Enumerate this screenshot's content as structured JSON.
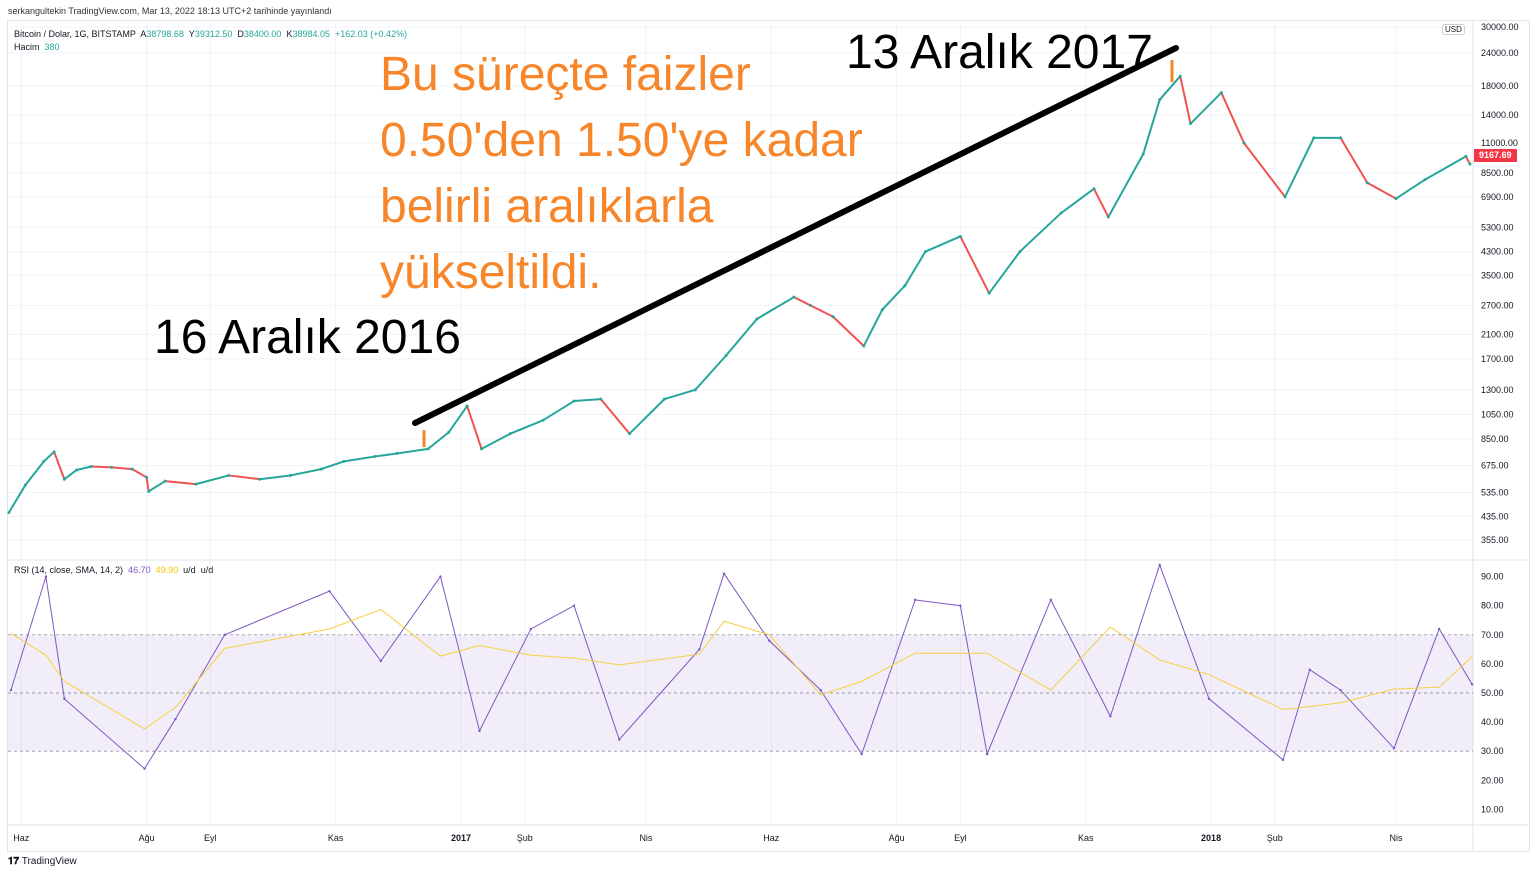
{
  "published": "serkangultekin TradingView.com, Mar 13, 2022 18:13 UTC+2 tarihinde yayınlandı",
  "legend": {
    "symbol": "Bitcoin / Dolar, 1G, BITSTAMP",
    "o_label": "A",
    "o": "38798.68",
    "h_label": "Y",
    "h": "39312.50",
    "l_label": "D",
    "l": "38400.00",
    "c_label": "K",
    "c": "38984.05",
    "change": "+162.03 (+0.42%)",
    "volume_label": "Hacim",
    "volume": "380"
  },
  "rsi_legend": {
    "label": "RSI (14, close, SMA, 14, 2)",
    "rsi": "46.70",
    "sma": "49.90",
    "ud1": "u/d",
    "ud2": "u/d"
  },
  "currency": "USD",
  "last_price": "9167.69",
  "annotations": {
    "orange_lines": [
      "Bu süreçte faizler",
      "0.50'den 1.50'ye kadar",
      "belirli aralıklarla",
      "yükseltildi."
    ],
    "start_label": "16 Aralık 2016",
    "end_label": "13 Aralık 2017"
  },
  "footer": "TradingView",
  "colors": {
    "up": "#26a69a",
    "down": "#ef5350",
    "rsi": "#7e57c2",
    "rsi_sma": "#f5d142",
    "annotation": "#f7862a",
    "trendline": "#000000"
  },
  "chart_data": [
    {
      "type": "line",
      "scale": "log",
      "title": "Bitcoin / Dolar, 1G, BITSTAMP",
      "ylim": [
        340,
        30000
      ],
      "y_ticks": [
        "30000.00",
        "24000.00",
        "18000.00",
        "14000.00",
        "11000.00",
        "8500.00",
        "6900.00",
        "5300.00",
        "4300.00",
        "3500.00",
        "2700.00",
        "2100.00",
        "1700.00",
        "1300.00",
        "1050.00",
        "850.00",
        "675.00",
        "535.00",
        "435.00",
        "355.00"
      ],
      "x_ticks": [
        {
          "label": "Haz",
          "date": "2016-06-01"
        },
        {
          "label": "Ağu",
          "date": "2016-08-01"
        },
        {
          "label": "Eyl",
          "date": "2016-09-01"
        },
        {
          "label": "Kas",
          "date": "2016-11-01"
        },
        {
          "label": "2017",
          "date": "2017-01-01"
        },
        {
          "label": "Şub",
          "date": "2017-02-01"
        },
        {
          "label": "Nis",
          "date": "2017-04-01"
        },
        {
          "label": "Haz",
          "date": "2017-06-01"
        },
        {
          "label": "Ağu",
          "date": "2017-08-01"
        },
        {
          "label": "Eyl",
          "date": "2017-09-01"
        },
        {
          "label": "Kas",
          "date": "2017-11-01"
        },
        {
          "label": "2018",
          "date": "2018-01-01"
        },
        {
          "label": "Şub",
          "date": "2018-02-01"
        },
        {
          "label": "Nis",
          "date": "2018-04-01"
        }
      ],
      "points": [
        [
          "2016-05-26",
          450
        ],
        [
          "2016-06-03",
          570
        ],
        [
          "2016-06-12",
          700
        ],
        [
          "2016-06-17",
          760
        ],
        [
          "2016-06-22",
          600
        ],
        [
          "2016-06-28",
          650
        ],
        [
          "2016-07-05",
          670
        ],
        [
          "2016-07-15",
          665
        ],
        [
          "2016-07-25",
          655
        ],
        [
          "2016-08-01",
          610
        ],
        [
          "2016-08-02",
          540
        ],
        [
          "2016-08-10",
          590
        ],
        [
          "2016-08-25",
          575
        ],
        [
          "2016-09-10",
          620
        ],
        [
          "2016-09-25",
          600
        ],
        [
          "2016-10-10",
          620
        ],
        [
          "2016-10-25",
          655
        ],
        [
          "2016-11-05",
          700
        ],
        [
          "2016-11-20",
          730
        ],
        [
          "2016-12-01",
          750
        ],
        [
          "2016-12-16",
          780
        ],
        [
          "2016-12-26",
          900
        ],
        [
          "2017-01-04",
          1130
        ],
        [
          "2017-01-11",
          780
        ],
        [
          "2017-01-25",
          890
        ],
        [
          "2017-02-10",
          1000
        ],
        [
          "2017-02-25",
          1180
        ],
        [
          "2017-03-10",
          1200
        ],
        [
          "2017-03-24",
          890
        ],
        [
          "2017-04-10",
          1200
        ],
        [
          "2017-04-25",
          1300
        ],
        [
          "2017-05-10",
          1750
        ],
        [
          "2017-05-25",
          2400
        ],
        [
          "2017-06-12",
          2900
        ],
        [
          "2017-06-20",
          2700
        ],
        [
          "2017-07-01",
          2450
        ],
        [
          "2017-07-16",
          1900
        ],
        [
          "2017-07-25",
          2600
        ],
        [
          "2017-08-05",
          3200
        ],
        [
          "2017-08-15",
          4300
        ],
        [
          "2017-09-01",
          4900
        ],
        [
          "2017-09-15",
          3000
        ],
        [
          "2017-09-30",
          4300
        ],
        [
          "2017-10-20",
          6000
        ],
        [
          "2017-11-05",
          7400
        ],
        [
          "2017-11-12",
          5800
        ],
        [
          "2017-11-29",
          10000
        ],
        [
          "2017-12-07",
          16000
        ],
        [
          "2017-12-17",
          19600
        ],
        [
          "2017-12-22",
          13000
        ],
        [
          "2018-01-06",
          17000
        ],
        [
          "2018-01-17",
          11000
        ],
        [
          "2018-02-06",
          6900
        ],
        [
          "2018-02-20",
          11500
        ],
        [
          "2018-03-05",
          11500
        ],
        [
          "2018-03-18",
          7800
        ],
        [
          "2018-04-01",
          6800
        ],
        [
          "2018-04-15",
          8000
        ],
        [
          "2018-05-05",
          9800
        ],
        [
          "2018-05-07",
          9168
        ]
      ]
    },
    {
      "type": "line",
      "title": "RSI (14, close, SMA, 14, 2)",
      "ylim": [
        0,
        100
      ],
      "bands": [
        30,
        50,
        70
      ],
      "y_ticks": [
        "90.00",
        "80.00",
        "70.00",
        "60.00",
        "50.00",
        "40.00",
        "30.00",
        "20.00",
        "10.00"
      ],
      "points": [
        [
          "2016-05-27",
          51
        ],
        [
          "2016-06-13",
          90
        ],
        [
          "2016-06-22",
          48
        ],
        [
          "2016-07-31",
          24
        ],
        [
          "2016-08-15",
          41
        ],
        [
          "2016-09-08",
          70
        ],
        [
          "2016-10-29",
          85
        ],
        [
          "2016-11-23",
          61
        ],
        [
          "2016-12-22",
          90
        ],
        [
          "2017-01-10",
          37
        ],
        [
          "2017-02-04",
          72
        ],
        [
          "2017-02-25",
          80
        ],
        [
          "2017-03-19",
          34
        ],
        [
          "2017-04-27",
          65
        ],
        [
          "2017-05-09",
          91
        ],
        [
          "2017-05-31",
          68
        ],
        [
          "2017-06-25",
          51
        ],
        [
          "2017-07-15",
          29
        ],
        [
          "2017-08-10",
          82
        ],
        [
          "2017-09-01",
          80
        ],
        [
          "2017-09-14",
          29
        ],
        [
          "2017-10-15",
          82
        ],
        [
          "2017-11-13",
          42
        ],
        [
          "2017-12-07",
          94
        ],
        [
          "2017-12-31",
          48
        ],
        [
          "2018-02-05",
          27
        ],
        [
          "2018-02-18",
          58
        ],
        [
          "2018-03-05",
          51
        ],
        [
          "2018-03-31",
          31
        ],
        [
          "2018-04-22",
          72
        ],
        [
          "2018-05-08",
          53
        ]
      ]
    }
  ]
}
